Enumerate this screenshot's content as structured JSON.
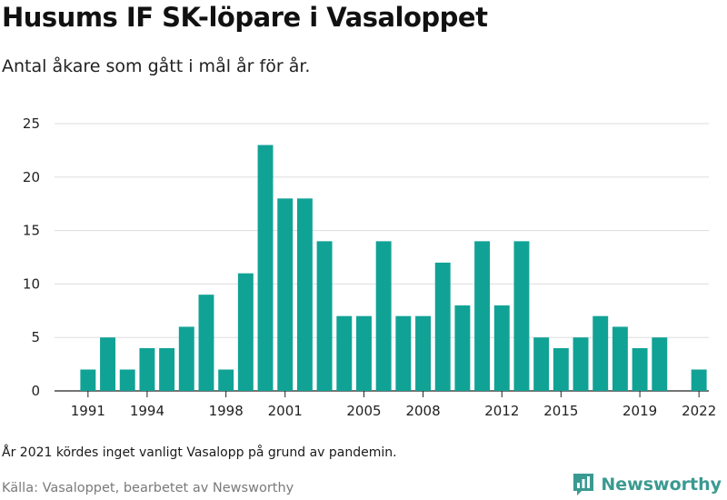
{
  "header": {
    "title": "Husums IF SK-löpare i Vasaloppet",
    "subtitle": "Antal åkare som gått i mål år för år."
  },
  "footer": {
    "note": "År 2021 kördes inget vanligt Vasalopp på grund av pandemin.",
    "source": "Källa: Vasaloppet, bearbetet av Newsworthy",
    "brand": "Newsworthy",
    "brand_icon": "newsworthy-logo-icon"
  },
  "colors": {
    "bar": "#11a296",
    "brand": "#3a9a91",
    "grid": "#dddddd"
  },
  "chart_data": {
    "type": "bar",
    "title": "Husums IF SK-löpare i Vasaloppet",
    "subtitle": "Antal åkare som gått i mål år för år.",
    "x": [
      1991,
      1992,
      1993,
      1994,
      1995,
      1996,
      1997,
      1998,
      1999,
      2000,
      2001,
      2002,
      2003,
      2004,
      2005,
      2006,
      2007,
      2008,
      2009,
      2010,
      2011,
      2012,
      2013,
      2014,
      2015,
      2016,
      2017,
      2018,
      2019,
      2020,
      2021,
      2022
    ],
    "values": [
      2,
      5,
      2,
      4,
      4,
      6,
      9,
      2,
      11,
      23,
      18,
      18,
      14,
      7,
      7,
      14,
      7,
      7,
      12,
      8,
      14,
      8,
      14,
      5,
      4,
      5,
      7,
      6,
      4,
      5,
      null,
      2
    ],
    "x_tick_labels": [
      "1991",
      "1994",
      "1998",
      "2001",
      "2005",
      "2008",
      "2012",
      "2015",
      "2019",
      "2022"
    ],
    "y_ticks": [
      0,
      5,
      10,
      15,
      20,
      25
    ],
    "ylim": [
      0,
      25
    ],
    "xlabel": "",
    "ylabel": "",
    "grid": true,
    "legend": "none"
  }
}
